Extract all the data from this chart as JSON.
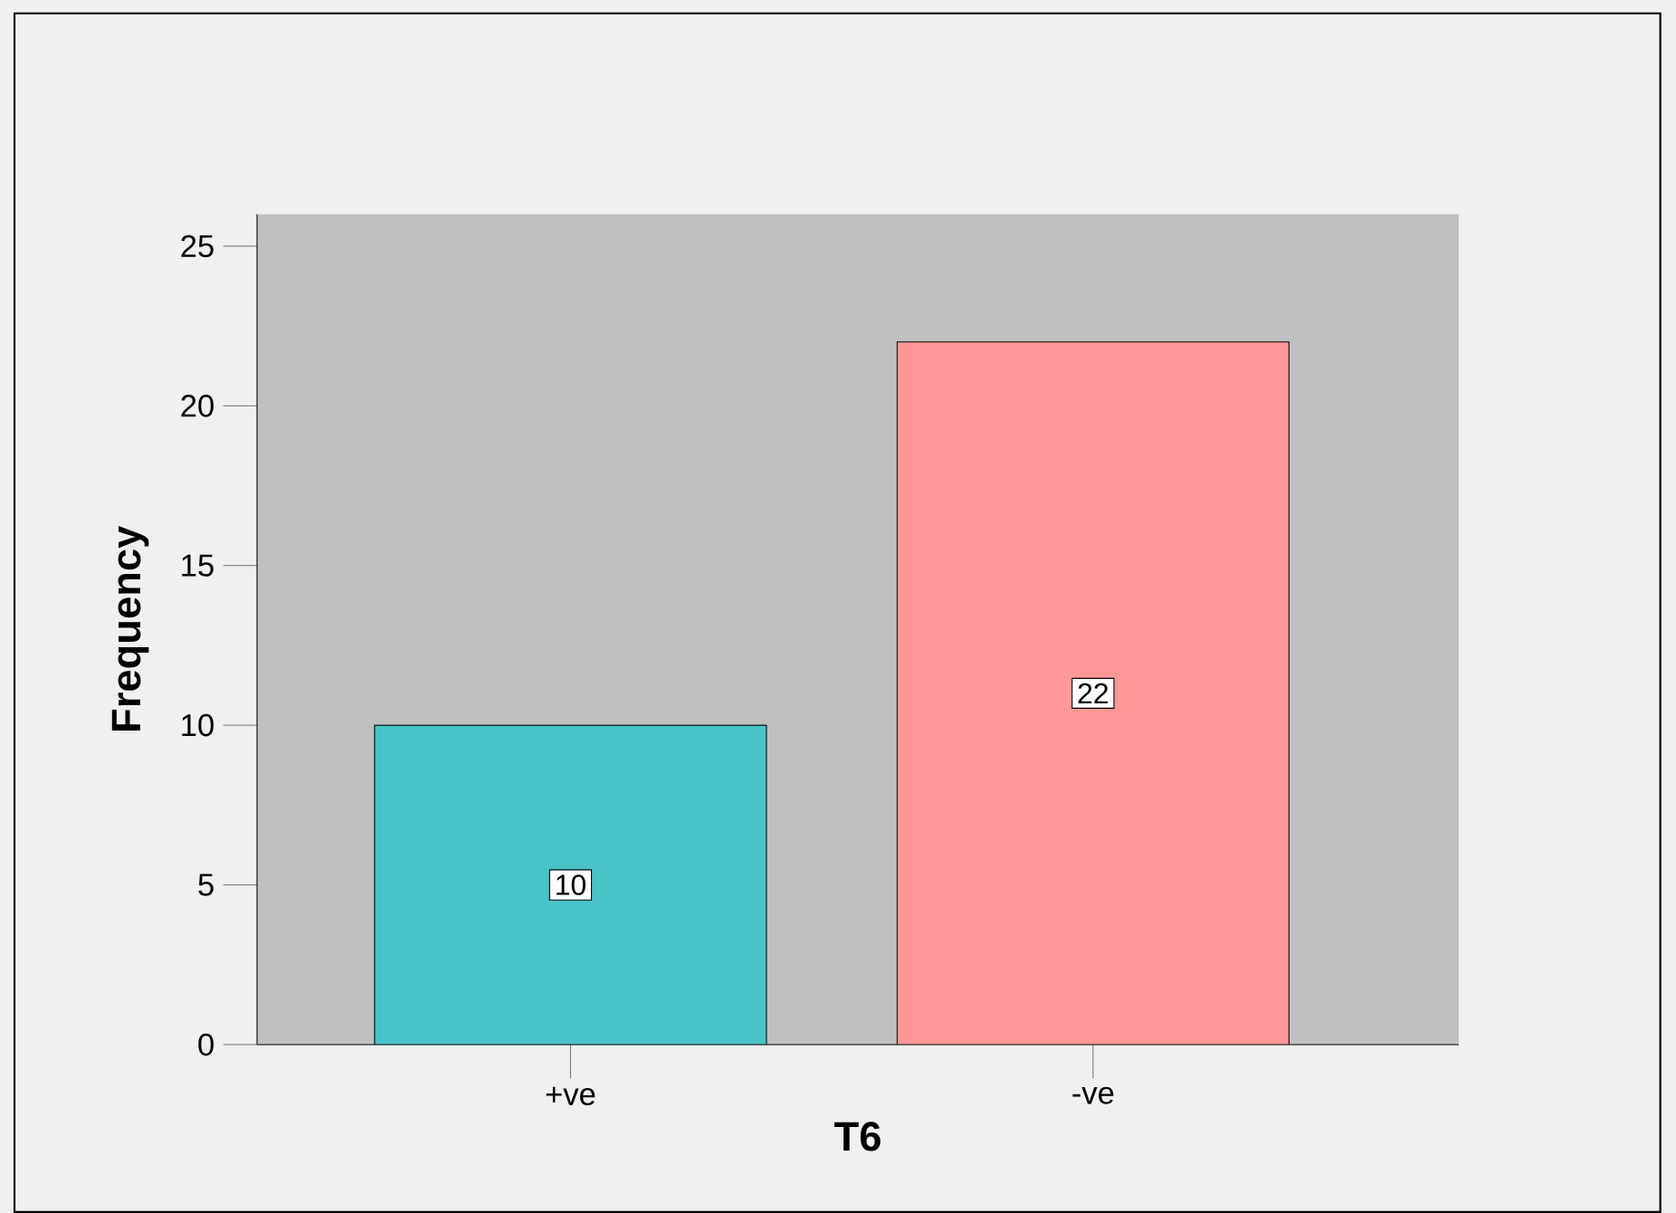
{
  "chart_data": {
    "type": "bar",
    "xlabel": "T6",
    "ylabel": "Frequency",
    "categories": [
      "+ve",
      "-ve"
    ],
    "values": [
      10,
      22
    ],
    "colors": [
      "#48c3c6",
      "#ff9896"
    ],
    "ylim": [
      0,
      26
    ],
    "yticks": [
      0,
      5,
      10,
      15,
      20,
      25
    ],
    "data_labels": true,
    "grid": false
  }
}
